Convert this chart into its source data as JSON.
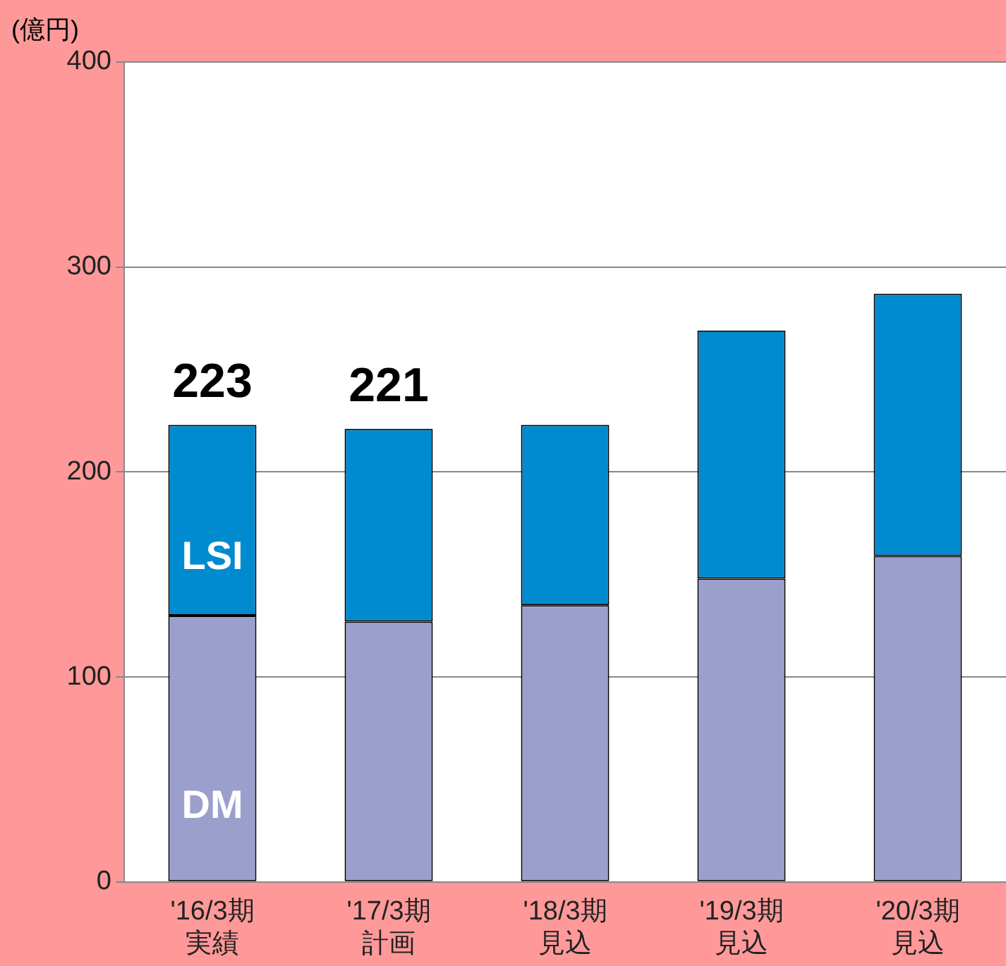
{
  "chart_data": {
    "type": "bar",
    "ylabel": "(億円)",
    "categories": [
      "'16/3期実績",
      "'17/3期計画",
      "'18/3期見込",
      "'19/3期見込",
      "'20/3期見込"
    ],
    "series": [
      {
        "name": "DM",
        "color": "#9b9fcc",
        "values": [
          130,
          127,
          135,
          148,
          159
        ]
      },
      {
        "name": "LSI",
        "color": "#008bd0",
        "values": [
          93,
          94,
          88,
          121,
          128
        ]
      }
    ],
    "stacked": true,
    "totals": [
      "223",
      "221",
      null,
      null,
      null
    ],
    "ylim": [
      0,
      400
    ],
    "yticks": [
      0,
      100,
      200,
      300,
      400
    ],
    "grid": "y",
    "legend": false
  }
}
